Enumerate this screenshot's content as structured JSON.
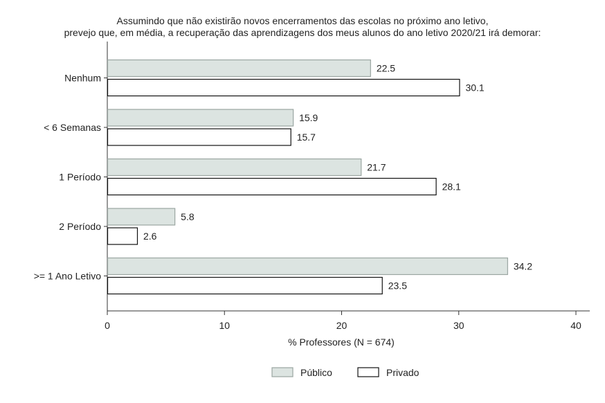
{
  "chart_data": {
    "type": "bar",
    "orientation": "horizontal",
    "title_lines": [
      "Assumindo que não existirão novos encerramentos das escolas no próximo ano letivo,",
      "prevejo que, em média, a recuperação das aprendizagens dos meus alunos do ano letivo 2020/21 irá demorar:"
    ],
    "categories": [
      "Nenhum",
      "< 6 Semanas",
      "1 Período",
      "2 Período",
      ">= 1 Ano Letivo"
    ],
    "series": [
      {
        "name": "Público",
        "values": [
          22.5,
          15.9,
          21.7,
          5.8,
          34.2
        ],
        "color": "#dce4e1",
        "stroke": "#9aa5a1"
      },
      {
        "name": "Privado",
        "values": [
          30.1,
          15.7,
          28.1,
          2.6,
          23.5
        ],
        "color": "#ffffff",
        "stroke": "#111111"
      }
    ],
    "xlabel": "% Professores (N = 674)",
    "xlim": [
      0,
      40
    ],
    "xticks": [
      0,
      10,
      20,
      30,
      40
    ],
    "grid": false,
    "legend_position": "bottom-center"
  }
}
